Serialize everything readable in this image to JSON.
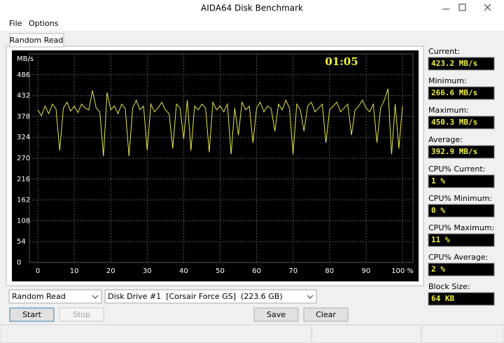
{
  "window": {
    "title": "AIDA64 Disk Benchmark"
  },
  "menu": [
    "File",
    "Options"
  ],
  "tab": "Random Read",
  "chart_data": {
    "type": "line",
    "y_label": "MB/s",
    "timer": "01:05",
    "x": [
      0,
      1,
      2,
      3,
      4,
      5,
      6,
      7,
      8,
      9,
      10,
      11,
      12,
      13,
      14,
      15,
      16,
      17,
      18,
      19,
      20,
      21,
      22,
      23,
      24,
      25,
      26,
      27,
      28,
      29,
      30,
      31,
      32,
      33,
      34,
      35,
      36,
      37,
      38,
      39,
      40,
      41,
      42,
      43,
      44,
      45,
      46,
      47,
      48,
      49,
      50,
      51,
      52,
      53,
      54,
      55,
      56,
      57,
      58,
      59,
      60,
      61,
      62,
      63,
      64,
      65,
      66,
      67,
      68,
      69,
      70,
      71,
      72,
      73,
      74,
      75,
      76,
      77,
      78,
      79,
      80,
      81,
      82,
      83,
      84,
      85,
      86,
      87,
      88,
      89,
      90,
      91,
      92,
      93,
      94,
      95,
      96,
      97,
      98,
      99,
      100
    ],
    "series": [
      {
        "color": "#e6e64a",
        "values": [
          395,
          380,
          405,
          385,
          410,
          398,
          290,
          400,
          415,
          392,
          405,
          388,
          410,
          400,
          395,
          445,
          400,
          390,
          275,
          440,
          395,
          405,
          385,
          410,
          398,
          275,
          400,
          420,
          395,
          405,
          290,
          410,
          390,
          400,
          415,
          395,
          385,
          295,
          410,
          400,
          320,
          420,
          290,
          405,
          395,
          410,
          400,
          285,
          415,
          395,
          405,
          390,
          410,
          280,
          400,
          330,
          415,
          395,
          405,
          310,
          400,
          415,
          390,
          405,
          398,
          340,
          410,
          395,
          420,
          400,
          280,
          410,
          395,
          340,
          405,
          415,
          390,
          400,
          410,
          310,
          395,
          405,
          415,
          390,
          400,
          410,
          330,
          395,
          405,
          420,
          400,
          390,
          410,
          310,
          400,
          420,
          450,
          280,
          410,
          295,
          405
        ]
      }
    ],
    "xlim": [
      0,
      100
    ],
    "ylim": [
      0,
      540
    ],
    "xticks": [
      0,
      10,
      20,
      30,
      40,
      50,
      60,
      70,
      80,
      90,
      {
        "value": 100,
        "label": "100 %"
      }
    ],
    "yticks": [
      0,
      54,
      108,
      162,
      216,
      270,
      324,
      378,
      432,
      486
    ],
    "grid": true
  },
  "side_panel": {
    "stats": [
      {
        "label": "Current:",
        "value": "423.2 MB/s"
      },
      {
        "label": "Minimum:",
        "value": "266.6 MB/s"
      },
      {
        "label": "Maximum:",
        "value": "450.3 MB/s"
      },
      {
        "label": "Average:",
        "value": "392.9 MB/s"
      },
      {
        "label": "CPU% Current:",
        "value": "1 %"
      },
      {
        "label": "CPU% Minimum:",
        "value": "0 %"
      },
      {
        "label": "CPU% Maximum:",
        "value": "11 %"
      },
      {
        "label": "CPU% Average:",
        "value": "2 %"
      },
      {
        "label": "Block Size:",
        "value": "64 KB"
      }
    ]
  },
  "controls": {
    "mode_select": "Random Read",
    "drive_select": "Disk Drive #1  [Corsair Force GS]  (223.6 GB)",
    "buttons": [
      "Start",
      "Stop",
      "Save",
      "Clear"
    ]
  }
}
